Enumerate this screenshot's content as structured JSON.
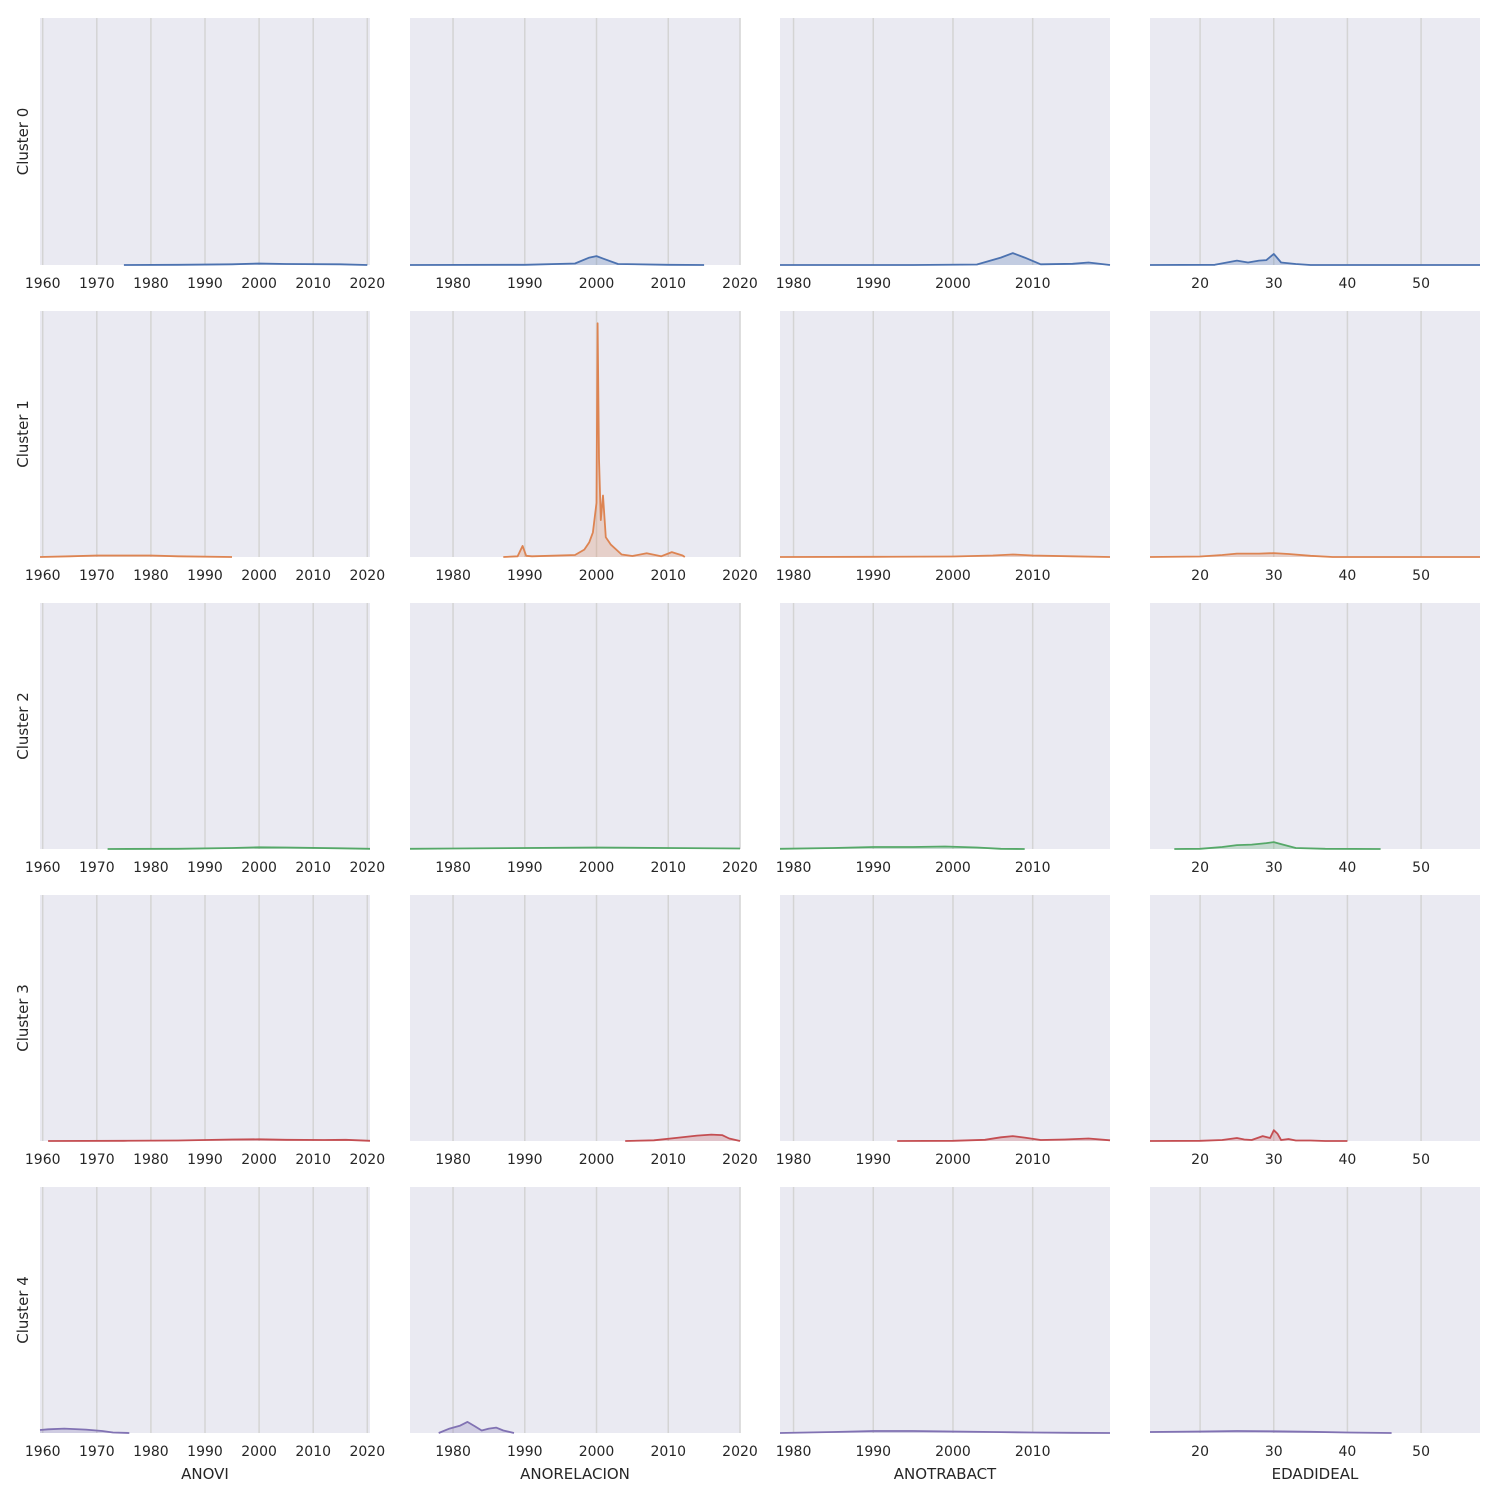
{
  "chart_data": {
    "type": "area",
    "grid": "vertical-gridlines",
    "background_color": "#eaeaf2",
    "row_labels": [
      "Cluster 0",
      "Cluster 1",
      "Cluster 2",
      "Cluster 3",
      "Cluster 4"
    ],
    "row_colors": [
      "#4c72b0",
      "#dd8452",
      "#55a868",
      "#c44e52",
      "#8172b3"
    ],
    "columns": [
      {
        "xlabel": "ANOVI",
        "xlim": [
          1959.5,
          2020.5
        ],
        "ticks": [
          1960,
          1970,
          1980,
          1990,
          2000,
          2010,
          2020
        ]
      },
      {
        "xlabel": "ANORELACION",
        "xlim": [
          1974,
          2020
        ],
        "ticks": [
          1980,
          1990,
          2000,
          2010,
          2020
        ]
      },
      {
        "xlabel": "ANOTRABACT",
        "xlim": [
          1978.3,
          2019.7
        ],
        "ticks": [
          1980,
          1990,
          2000,
          2010
        ]
      },
      {
        "xlabel": "EDADIDEAL",
        "xlim": [
          13.2,
          58
        ],
        "ticks": [
          20,
          30,
          40,
          50
        ]
      }
    ],
    "ylim": [
      0,
      1.0
    ],
    "panels": [
      [
        {
          "x": [
            1975,
            1985,
            1995,
            2000,
            2005,
            2015,
            2020
          ],
          "y": [
            0.0,
            0.001,
            0.003,
            0.006,
            0.004,
            0.003,
            0.0
          ]
        },
        {
          "x": [
            1974,
            1990,
            1997,
            1999,
            2000,
            2001,
            2003,
            2010,
            2015
          ],
          "y": [
            0.0,
            0.001,
            0.006,
            0.03,
            0.036,
            0.025,
            0.004,
            0.001,
            0.0
          ]
        },
        {
          "x": [
            1978.3,
            1995,
            2003,
            2006,
            2007.5,
            2009,
            2011,
            2015,
            2017,
            2019.7
          ],
          "y": [
            0.0,
            0.0,
            0.002,
            0.03,
            0.048,
            0.03,
            0.003,
            0.005,
            0.01,
            0.0
          ]
        },
        {
          "x": [
            13.2,
            22,
            24,
            25,
            26.5,
            28,
            29,
            30,
            31,
            33,
            35,
            58
          ],
          "y": [
            0.0,
            0.001,
            0.012,
            0.018,
            0.01,
            0.018,
            0.02,
            0.045,
            0.01,
            0.004,
            0.0,
            0.0
          ]
        }
      ],
      [
        {
          "x": [
            1959.5,
            1965,
            1970,
            1975,
            1980,
            1985,
            1995
          ],
          "y": [
            0.0,
            0.003,
            0.006,
            0.006,
            0.006,
            0.003,
            0.0
          ]
        },
        {
          "x": [
            1987,
            1989,
            1989.7,
            1990.2,
            1991,
            1997,
            1998.3,
            1999,
            1999.5,
            2000,
            2000.15,
            2000.35,
            2000.6,
            2000.9,
            2001.3,
            2002,
            2003.5,
            2005,
            2007,
            2009,
            2010.5,
            2012,
            2012.3
          ],
          "y": [
            0.0,
            0.003,
            0.045,
            0.005,
            0.003,
            0.008,
            0.03,
            0.06,
            0.1,
            0.22,
            0.95,
            0.4,
            0.15,
            0.25,
            0.08,
            0.05,
            0.01,
            0.004,
            0.015,
            0.003,
            0.02,
            0.006,
            0.0
          ]
        },
        {
          "x": [
            1978.3,
            1990,
            2000,
            2005,
            2007.5,
            2010,
            2015,
            2019.7
          ],
          "y": [
            0.0,
            0.001,
            0.002,
            0.006,
            0.01,
            0.006,
            0.003,
            0.0
          ]
        },
        {
          "x": [
            13.2,
            20,
            23,
            25,
            28,
            30,
            32,
            35,
            38,
            58
          ],
          "y": [
            0.0,
            0.002,
            0.008,
            0.014,
            0.014,
            0.016,
            0.012,
            0.005,
            0.0,
            0.0
          ]
        }
      ],
      [
        {
          "x": [
            1972,
            1985,
            1995,
            2000,
            2005,
            2015,
            2020.5
          ],
          "y": [
            0.0,
            0.001,
            0.004,
            0.007,
            0.006,
            0.003,
            0.001
          ]
        },
        {
          "x": [
            1974,
            1980,
            1990,
            2000,
            2010,
            2020
          ],
          "y": [
            0.001,
            0.002,
            0.004,
            0.006,
            0.004,
            0.002
          ]
        },
        {
          "x": [
            1978.3,
            1985,
            1990,
            1995,
            1999,
            2003,
            2006,
            2009
          ],
          "y": [
            0.001,
            0.004,
            0.008,
            0.008,
            0.01,
            0.006,
            0.001,
            0.0
          ]
        },
        {
          "x": [
            16.5,
            20,
            23,
            25,
            27,
            29,
            30,
            31,
            33,
            37,
            44.5
          ],
          "y": [
            0.0,
            0.001,
            0.008,
            0.016,
            0.018,
            0.024,
            0.028,
            0.02,
            0.004,
            0.001,
            0.0
          ]
        }
      ],
      [
        {
          "x": [
            1961,
            1975,
            1985,
            1995,
            2000,
            2005,
            2012,
            2016,
            2020.5
          ],
          "y": [
            0.0,
            0.001,
            0.002,
            0.006,
            0.007,
            0.005,
            0.004,
            0.005,
            0.001
          ]
        },
        {
          "x": [
            2004,
            2008,
            2011,
            2014,
            2016,
            2017.5,
            2018.5,
            2020
          ],
          "y": [
            0.0,
            0.003,
            0.012,
            0.022,
            0.026,
            0.024,
            0.01,
            0.0
          ]
        },
        {
          "x": [
            1993,
            2000,
            2004,
            2006,
            2007.5,
            2009,
            2011,
            2014,
            2017,
            2019.7
          ],
          "y": [
            0.0,
            0.001,
            0.005,
            0.015,
            0.02,
            0.014,
            0.004,
            0.006,
            0.01,
            0.003
          ]
        },
        {
          "x": [
            13.2,
            20,
            23,
            25,
            26,
            27,
            28.5,
            29.5,
            30,
            30.5,
            31,
            32,
            33,
            35,
            37,
            40
          ],
          "y": [
            0.0,
            0.001,
            0.004,
            0.012,
            0.006,
            0.004,
            0.02,
            0.012,
            0.044,
            0.03,
            0.004,
            0.008,
            0.002,
            0.002,
            0.0,
            0.0
          ]
        }
      ],
      [
        {
          "x": [
            1959.5,
            1961,
            1964,
            1968,
            1971,
            1973,
            1976
          ],
          "y": [
            0.012,
            0.015,
            0.018,
            0.014,
            0.008,
            0.002,
            0.0
          ]
        },
        {
          "x": [
            1978,
            1979.5,
            1981,
            1982,
            1983,
            1984,
            1985,
            1986,
            1987,
            1988.5
          ],
          "y": [
            0.0,
            0.018,
            0.03,
            0.045,
            0.028,
            0.01,
            0.018,
            0.022,
            0.01,
            0.0
          ]
        },
        {
          "x": [
            1978.3,
            1985,
            1990,
            1995,
            2000,
            2005,
            2010,
            2015,
            2019.7
          ],
          "y": [
            0.0,
            0.004,
            0.008,
            0.008,
            0.006,
            0.004,
            0.002,
            0.001,
            0.0
          ]
        },
        {
          "x": [
            13.2,
            20,
            25,
            30,
            35,
            40,
            46
          ],
          "y": [
            0.004,
            0.006,
            0.008,
            0.007,
            0.005,
            0.002,
            0.0
          ]
        }
      ]
    ]
  }
}
